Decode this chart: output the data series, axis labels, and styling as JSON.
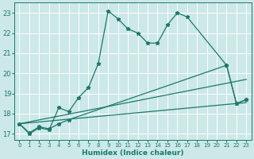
{
  "xlabel": "Humidex (Indice chaleur)",
  "bg_color": "#cce8e8",
  "grid_color": "#ffffff",
  "line_color": "#1a7a6a",
  "xlim": [
    -0.5,
    23.5
  ],
  "ylim": [
    16.7,
    23.5
  ],
  "yticks": [
    17,
    18,
    19,
    20,
    21,
    22,
    23
  ],
  "xticks": [
    0,
    1,
    2,
    3,
    4,
    5,
    6,
    7,
    8,
    9,
    10,
    11,
    12,
    13,
    14,
    15,
    16,
    17,
    18,
    19,
    20,
    21,
    22,
    23
  ],
  "line1": {
    "x": [
      0,
      1,
      2,
      3,
      4,
      5,
      6,
      7,
      8,
      9,
      10,
      11,
      12,
      13,
      14,
      15,
      16,
      17,
      21,
      22,
      23
    ],
    "y": [
      17.5,
      17.0,
      17.3,
      17.2,
      18.3,
      18.1,
      18.8,
      19.3,
      20.5,
      23.1,
      22.7,
      22.2,
      22.0,
      21.5,
      21.5,
      22.4,
      23.0,
      22.8,
      20.4,
      18.5,
      18.7
    ]
  },
  "line2": {
    "x": [
      0,
      1,
      2,
      3,
      4,
      5,
      21,
      22,
      23
    ],
    "y": [
      17.5,
      17.05,
      17.35,
      17.25,
      17.5,
      17.7,
      20.4,
      18.5,
      18.7
    ]
  },
  "line3": {
    "x": [
      0,
      23
    ],
    "y": [
      17.5,
      18.55
    ]
  },
  "line4": {
    "x": [
      0,
      23
    ],
    "y": [
      17.5,
      19.7
    ]
  }
}
